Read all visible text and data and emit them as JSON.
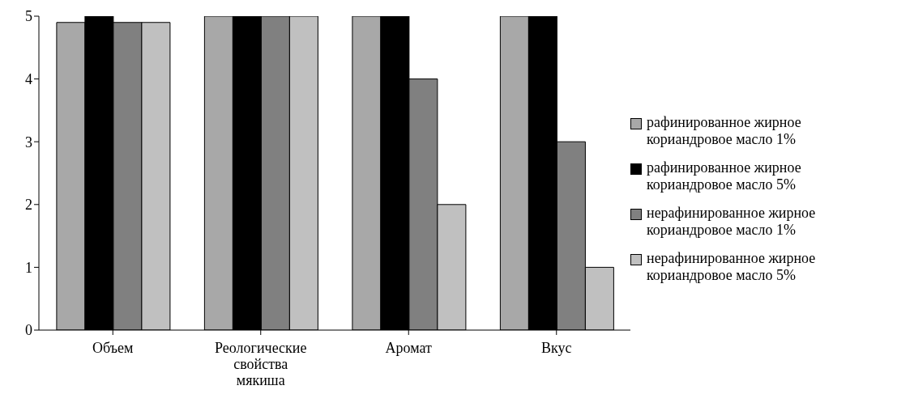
{
  "chart_data": {
    "type": "bar",
    "categories": [
      "Объем",
      "Реологические свойства мякиша",
      "Аромат",
      "Вкус"
    ],
    "series": [
      {
        "name": "рафинированное жирное кориандровое масло 1%",
        "color": "#a8a8a8",
        "values": [
          4.9,
          5,
          5,
          5
        ]
      },
      {
        "name": "рафинированное жирное кориандровое масло 5%",
        "color": "#000000",
        "values": [
          5,
          5,
          5,
          5
        ]
      },
      {
        "name": "нерафинированное жирное кориандровое масло 1%",
        "color": "#808080",
        "values": [
          4.9,
          5,
          4,
          3
        ]
      },
      {
        "name": "нерафинированное жирное кориандровое масло 5%",
        "color": "#c0c0c0",
        "values": [
          4.9,
          5,
          2,
          1
        ]
      }
    ],
    "ylim": [
      0,
      5
    ],
    "yticks": [
      0,
      1,
      2,
      3,
      4,
      5
    ],
    "grid": false,
    "legend": "right"
  }
}
